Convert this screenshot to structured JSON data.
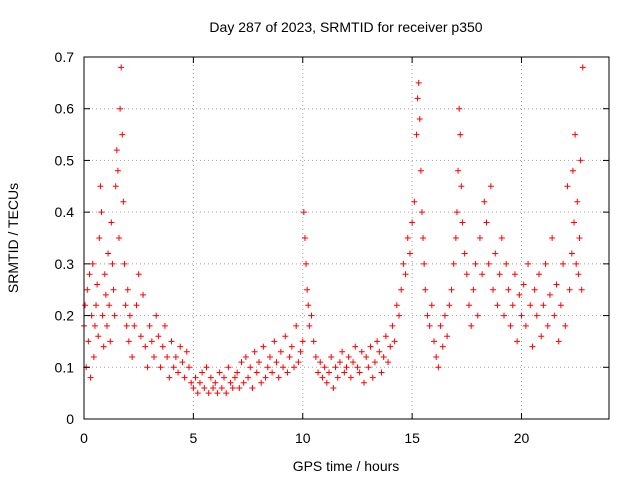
{
  "chart_data": {
    "type": "scatter",
    "title": "Day 287 of 2023, SRMTID for receiver p350",
    "xlabel": "GPS time / hours",
    "ylabel": "SRMTID / TECUs",
    "xlim": [
      0,
      24
    ],
    "ylim": [
      0,
      0.7
    ],
    "xticks": [
      0,
      5,
      10,
      15,
      20
    ],
    "yticks": [
      0,
      0.1,
      0.2,
      0.3,
      0.4,
      0.5,
      0.6,
      0.7
    ],
    "ytick_labels": [
      "0",
      "0.1",
      "0.2",
      "0.3",
      "0.4",
      "0.5",
      "0.6",
      "0.7"
    ],
    "grid": true,
    "marker": "+",
    "series": [
      {
        "name": "p350",
        "color": "#ff0000",
        "x": [
          0.0,
          0.05,
          0.1,
          0.15,
          0.2,
          0.25,
          0.3,
          0.35,
          0.4,
          0.45,
          0.5,
          0.55,
          0.6,
          0.65,
          0.7,
          0.75,
          0.8,
          0.85,
          0.9,
          0.95,
          1.0,
          1.05,
          1.1,
          1.15,
          1.2,
          1.25,
          1.3,
          1.35,
          1.4,
          1.45,
          1.5,
          1.55,
          1.6,
          1.65,
          1.7,
          1.75,
          1.8,
          1.85,
          1.9,
          1.95,
          2.0,
          2.05,
          2.1,
          2.2,
          2.3,
          2.4,
          2.5,
          2.6,
          2.7,
          2.8,
          2.9,
          3.0,
          3.1,
          3.2,
          3.3,
          3.4,
          3.5,
          3.6,
          3.7,
          3.8,
          3.9,
          4.0,
          4.1,
          4.2,
          4.3,
          4.4,
          4.5,
          4.6,
          4.7,
          4.8,
          4.9,
          5.0,
          5.1,
          5.2,
          5.3,
          5.4,
          5.5,
          5.6,
          5.7,
          5.8,
          5.9,
          6.0,
          6.1,
          6.2,
          6.3,
          6.4,
          6.5,
          6.6,
          6.7,
          6.8,
          6.9,
          7.0,
          7.1,
          7.2,
          7.3,
          7.4,
          7.5,
          7.6,
          7.7,
          7.8,
          7.9,
          8.0,
          8.1,
          8.2,
          8.3,
          8.4,
          8.5,
          8.6,
          8.7,
          8.8,
          8.9,
          9.0,
          9.1,
          9.2,
          9.3,
          9.4,
          9.5,
          9.6,
          9.7,
          9.8,
          9.9,
          10.0,
          10.05,
          10.1,
          10.15,
          10.2,
          10.25,
          10.3,
          10.4,
          10.5,
          10.6,
          10.7,
          10.8,
          10.9,
          11.0,
          11.1,
          11.2,
          11.3,
          11.4,
          11.5,
          11.6,
          11.7,
          11.8,
          11.9,
          12.0,
          12.1,
          12.2,
          12.3,
          12.4,
          12.5,
          12.6,
          12.7,
          12.8,
          12.9,
          13.0,
          13.1,
          13.2,
          13.3,
          13.4,
          13.5,
          13.6,
          13.7,
          13.8,
          13.9,
          14.0,
          14.1,
          14.2,
          14.3,
          14.4,
          14.5,
          14.6,
          14.7,
          14.8,
          14.9,
          15.0,
          15.1,
          15.2,
          15.25,
          15.3,
          15.35,
          15.4,
          15.45,
          15.5,
          15.55,
          15.6,
          15.7,
          15.8,
          15.9,
          16.0,
          16.1,
          16.2,
          16.3,
          16.4,
          16.5,
          16.6,
          16.7,
          16.8,
          16.9,
          17.0,
          17.05,
          17.1,
          17.15,
          17.2,
          17.25,
          17.3,
          17.4,
          17.5,
          17.6,
          17.7,
          17.8,
          17.9,
          18.0,
          18.1,
          18.2,
          18.3,
          18.4,
          18.5,
          18.6,
          18.7,
          18.8,
          18.9,
          19.0,
          19.1,
          19.2,
          19.3,
          19.4,
          19.5,
          19.6,
          19.7,
          19.8,
          19.9,
          20.0,
          20.1,
          20.2,
          20.3,
          20.4,
          20.5,
          20.6,
          20.7,
          20.8,
          20.9,
          21.0,
          21.1,
          21.2,
          21.3,
          21.4,
          21.5,
          21.6,
          21.7,
          21.8,
          21.9,
          22.0,
          22.1,
          22.2,
          22.3,
          22.35,
          22.4,
          22.45,
          22.5,
          22.55,
          22.6,
          22.65,
          22.7,
          22.75,
          22.8
        ],
        "y": [
          0.18,
          0.22,
          0.1,
          0.25,
          0.15,
          0.28,
          0.08,
          0.2,
          0.3,
          0.12,
          0.18,
          0.22,
          0.26,
          0.16,
          0.35,
          0.45,
          0.4,
          0.2,
          0.14,
          0.28,
          0.24,
          0.18,
          0.32,
          0.22,
          0.15,
          0.38,
          0.3,
          0.25,
          0.2,
          0.45,
          0.52,
          0.48,
          0.35,
          0.6,
          0.68,
          0.55,
          0.42,
          0.3,
          0.22,
          0.18,
          0.25,
          0.15,
          0.2,
          0.12,
          0.18,
          0.22,
          0.28,
          0.16,
          0.24,
          0.14,
          0.1,
          0.18,
          0.15,
          0.12,
          0.2,
          0.16,
          0.1,
          0.14,
          0.18,
          0.12,
          0.08,
          0.15,
          0.1,
          0.12,
          0.09,
          0.14,
          0.11,
          0.08,
          0.13,
          0.1,
          0.07,
          0.06,
          0.08,
          0.05,
          0.07,
          0.09,
          0.06,
          0.1,
          0.05,
          0.08,
          0.06,
          0.07,
          0.05,
          0.09,
          0.06,
          0.08,
          0.05,
          0.1,
          0.07,
          0.06,
          0.08,
          0.09,
          0.06,
          0.11,
          0.07,
          0.12,
          0.08,
          0.1,
          0.06,
          0.13,
          0.09,
          0.11,
          0.07,
          0.14,
          0.08,
          0.1,
          0.12,
          0.09,
          0.15,
          0.11,
          0.08,
          0.13,
          0.1,
          0.16,
          0.09,
          0.12,
          0.14,
          0.1,
          0.18,
          0.11,
          0.13,
          0.15,
          0.4,
          0.35,
          0.3,
          0.25,
          0.22,
          0.18,
          0.2,
          0.15,
          0.12,
          0.09,
          0.11,
          0.08,
          0.1,
          0.07,
          0.09,
          0.12,
          0.06,
          0.1,
          0.08,
          0.11,
          0.13,
          0.09,
          0.1,
          0.12,
          0.08,
          0.11,
          0.14,
          0.1,
          0.09,
          0.13,
          0.07,
          0.12,
          0.1,
          0.14,
          0.08,
          0.11,
          0.15,
          0.13,
          0.09,
          0.12,
          0.16,
          0.11,
          0.14,
          0.18,
          0.15,
          0.22,
          0.2,
          0.25,
          0.3,
          0.28,
          0.35,
          0.32,
          0.38,
          0.42,
          0.55,
          0.62,
          0.65,
          0.58,
          0.48,
          0.4,
          0.35,
          0.3,
          0.25,
          0.2,
          0.18,
          0.22,
          0.15,
          0.12,
          0.1,
          0.18,
          0.14,
          0.2,
          0.16,
          0.22,
          0.25,
          0.3,
          0.35,
          0.4,
          0.48,
          0.6,
          0.55,
          0.45,
          0.38,
          0.32,
          0.28,
          0.22,
          0.18,
          0.25,
          0.3,
          0.2,
          0.35,
          0.28,
          0.42,
          0.38,
          0.3,
          0.45,
          0.25,
          0.32,
          0.22,
          0.28,
          0.35,
          0.2,
          0.3,
          0.25,
          0.18,
          0.22,
          0.28,
          0.15,
          0.24,
          0.2,
          0.26,
          0.18,
          0.3,
          0.22,
          0.14,
          0.25,
          0.2,
          0.28,
          0.16,
          0.22,
          0.3,
          0.18,
          0.24,
          0.35,
          0.2,
          0.26,
          0.15,
          0.22,
          0.3,
          0.18,
          0.45,
          0.25,
          0.32,
          0.48,
          0.38,
          0.55,
          0.3,
          0.42,
          0.28,
          0.35,
          0.5,
          0.25,
          0.68
        ]
      }
    ]
  }
}
